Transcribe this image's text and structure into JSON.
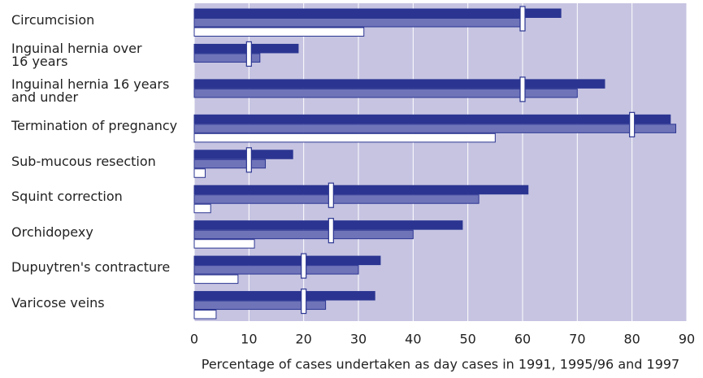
{
  "chart_data": {
    "type": "hbar",
    "xlabel": "Percentage of cases undertaken as day cases in 1991, 1995/96 and 1997",
    "categories": [
      "Circumcision",
      "Inguinal hernia over\n16 years",
      "Inguinal hernia 16 years\nand under",
      "Termination of pregnancy",
      "Sub-mucous resection",
      "Squint correction",
      "Orchidopexy",
      "Dupuytren's contracture",
      "Varicose veins"
    ],
    "series": [
      {
        "color": "#2b3591",
        "values": [
          67,
          19,
          75,
          87,
          18,
          61,
          49,
          34,
          33
        ]
      },
      {
        "color": "#6f74b9",
        "values": [
          60,
          12,
          70,
          88,
          13,
          52,
          40,
          30,
          24
        ]
      },
      {
        "color": "#ffffff",
        "values": [
          31,
          null,
          null,
          55,
          2,
          3,
          11,
          8,
          4
        ]
      }
    ],
    "targets": {
      "color": "#ffffff",
      "values": [
        60,
        10,
        60,
        80,
        10,
        25,
        25,
        20,
        20
      ]
    },
    "xlim": [
      0,
      90
    ],
    "xticks": [
      0,
      10,
      20,
      30,
      40,
      50,
      60,
      70,
      80,
      90
    ],
    "grid": true,
    "plot_color": "#c6c4e1"
  }
}
